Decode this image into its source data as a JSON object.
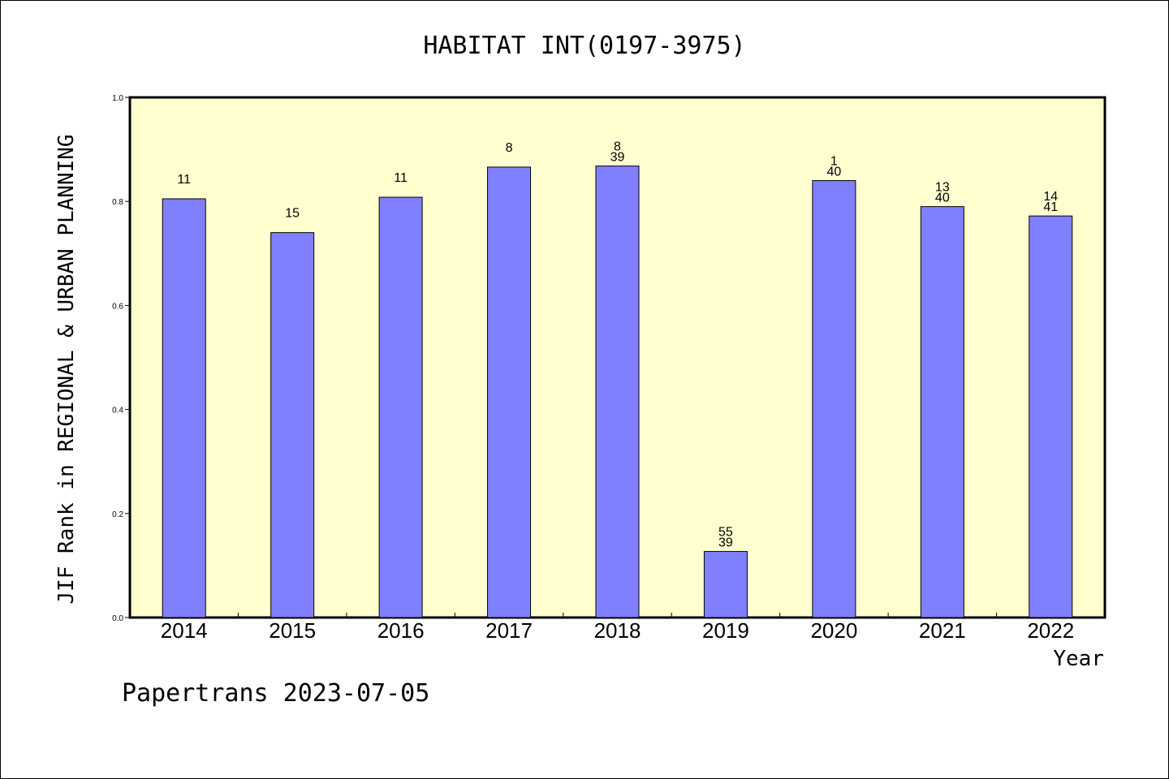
{
  "chart_data": {
    "type": "bar",
    "title": "HABITAT INT(0197-3975)",
    "xlabel": "Year",
    "ylabel": "JIF Rank in REGIONAL & URBAN PLANNING",
    "ylim": [
      0,
      1.0
    ],
    "yticks": [
      "0.0",
      "0.2",
      "0.4",
      "0.6",
      "0.8",
      "1.0"
    ],
    "categories": [
      "2014",
      "2015",
      "2016",
      "2017",
      "2018",
      "2019",
      "2020",
      "2021",
      "2022"
    ],
    "values": [
      0.805,
      0.74,
      0.808,
      0.866,
      0.868,
      0.127,
      0.84,
      0.79,
      0.772
    ],
    "labels": [
      [
        "11"
      ],
      [
        "15"
      ],
      [
        "11"
      ],
      [
        "8"
      ],
      [
        "8",
        "39"
      ],
      [
        "55",
        "39"
      ],
      [
        "1",
        "40"
      ],
      [
        "13",
        "40"
      ],
      [
        "14",
        "41"
      ]
    ],
    "grid": false,
    "colors": {
      "bar": "#8080ff",
      "plot_bg": "#ffffd0"
    }
  },
  "footer": "Papertrans 2023-07-05"
}
